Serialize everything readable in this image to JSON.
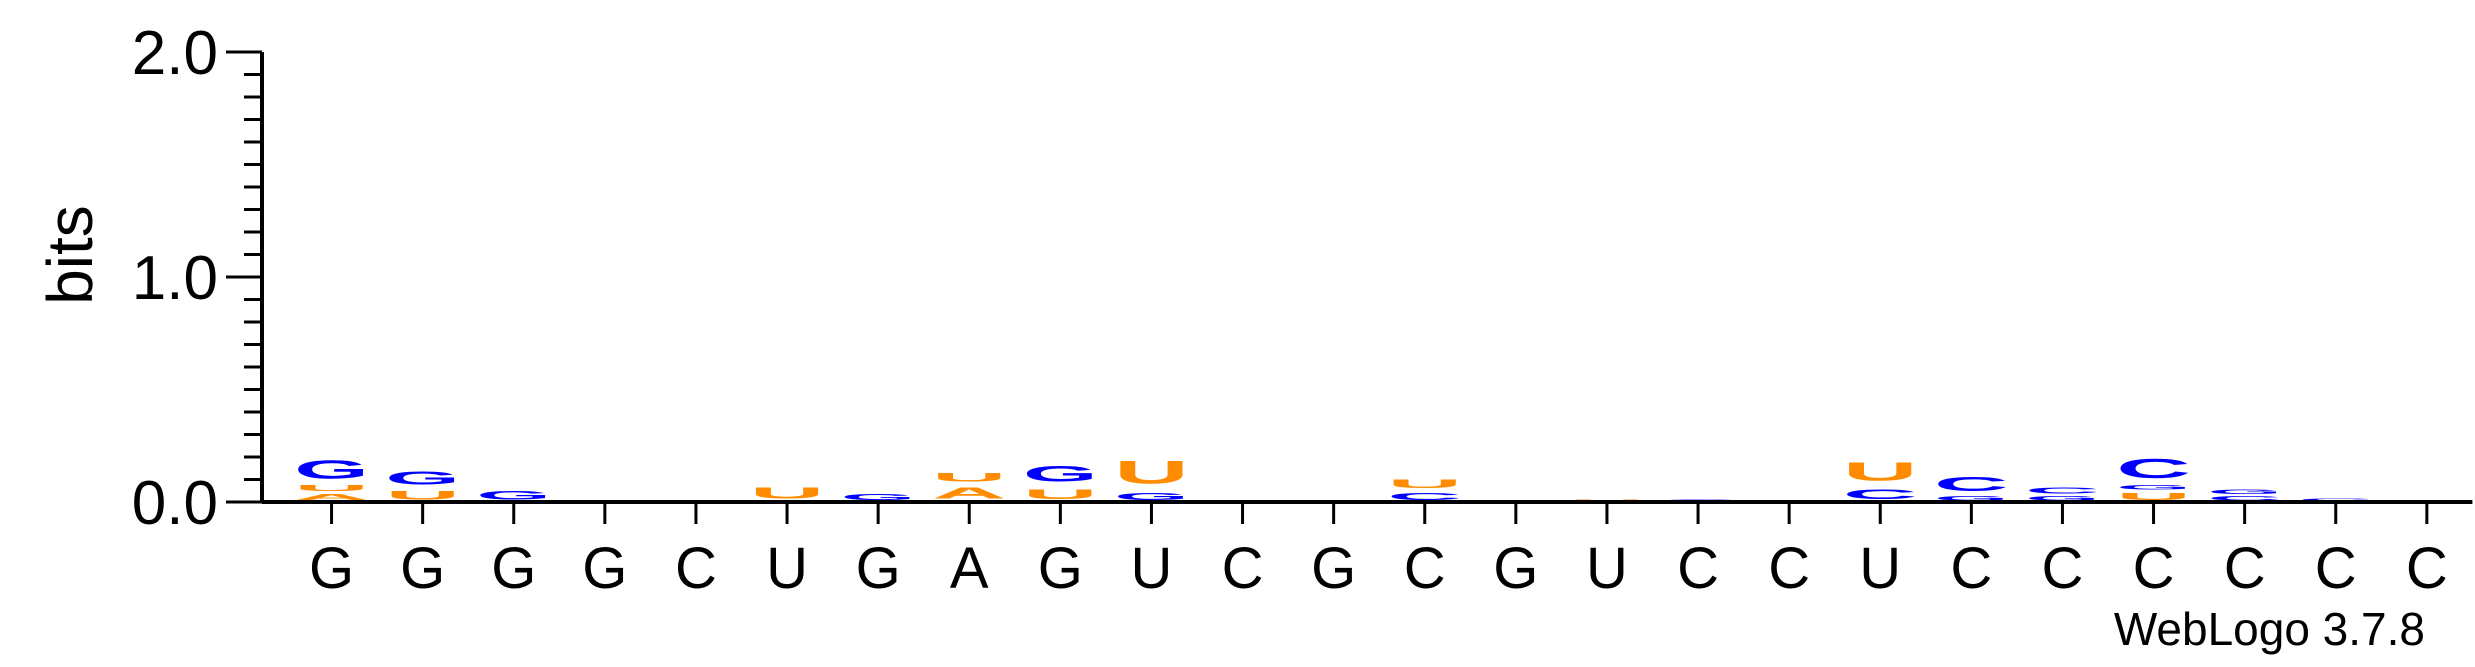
{
  "chart_data": {
    "type": "sequence-logo",
    "ylabel": "bits",
    "ylim": [
      0,
      2.0
    ],
    "y_ticks": [
      {
        "value": 0.0,
        "label": "0.0"
      },
      {
        "value": 1.0,
        "label": "1.0"
      },
      {
        "value": 2.0,
        "label": "2.0"
      }
    ],
    "x_labels": [
      "G",
      "G",
      "G",
      "G",
      "C",
      "U",
      "G",
      "A",
      "G",
      "U",
      "C",
      "G",
      "C",
      "G",
      "U",
      "C",
      "C",
      "U",
      "C",
      "C",
      "C",
      "C",
      "C",
      "C"
    ],
    "colors": {
      "G": "#0000ff",
      "C": "#0000ff",
      "U": "#ff8c00",
      "A": "#ff8c00"
    },
    "stacks": [
      [
        {
          "letter": "A",
          "bits": 0.04
        },
        {
          "letter": "U",
          "bits": 0.04
        },
        {
          "letter": "G",
          "bits": 0.13
        }
      ],
      [
        {
          "letter": "U",
          "bits": 0.06
        },
        {
          "letter": "G",
          "bits": 0.09
        }
      ],
      [
        {
          "letter": "G",
          "bits": 0.06
        }
      ],
      [],
      [
        {
          "letter": "C",
          "bits": 0.008
        }
      ],
      [
        {
          "letter": "U",
          "bits": 0.08
        }
      ],
      [
        {
          "letter": "G",
          "bits": 0.04
        }
      ],
      [
        {
          "letter": "A",
          "bits": 0.08
        },
        {
          "letter": "U",
          "bits": 0.06
        }
      ],
      [
        {
          "letter": "U",
          "bits": 0.07
        },
        {
          "letter": "G",
          "bits": 0.11
        }
      ],
      [
        {
          "letter": "G",
          "bits": 0.05
        },
        {
          "letter": "U",
          "bits": 0.16
        }
      ],
      [],
      [],
      [
        {
          "letter": "C",
          "bits": 0.05
        },
        {
          "letter": "U",
          "bits": 0.06
        }
      ],
      [],
      [
        {
          "letter": "U",
          "bits": 0.012
        }
      ],
      [
        {
          "letter": "C",
          "bits": 0.012
        }
      ],
      [],
      [
        {
          "letter": "C",
          "bits": 0.07
        },
        {
          "letter": "U",
          "bits": 0.13
        }
      ],
      [
        {
          "letter": "G",
          "bits": 0.03
        },
        {
          "letter": "C",
          "bits": 0.1
        }
      ],
      [
        {
          "letter": "G",
          "bits": 0.03
        },
        {
          "letter": "C",
          "bits": 0.04
        }
      ],
      [
        {
          "letter": "U",
          "bits": 0.05
        },
        {
          "letter": "G",
          "bits": 0.03
        },
        {
          "letter": "C",
          "bits": 0.14
        }
      ],
      [
        {
          "letter": "C",
          "bits": 0.03
        },
        {
          "letter": "G",
          "bits": 0.03
        }
      ],
      [
        {
          "letter": "C",
          "bits": 0.02
        }
      ],
      []
    ],
    "footer": "WebLogo 3.7.8"
  }
}
